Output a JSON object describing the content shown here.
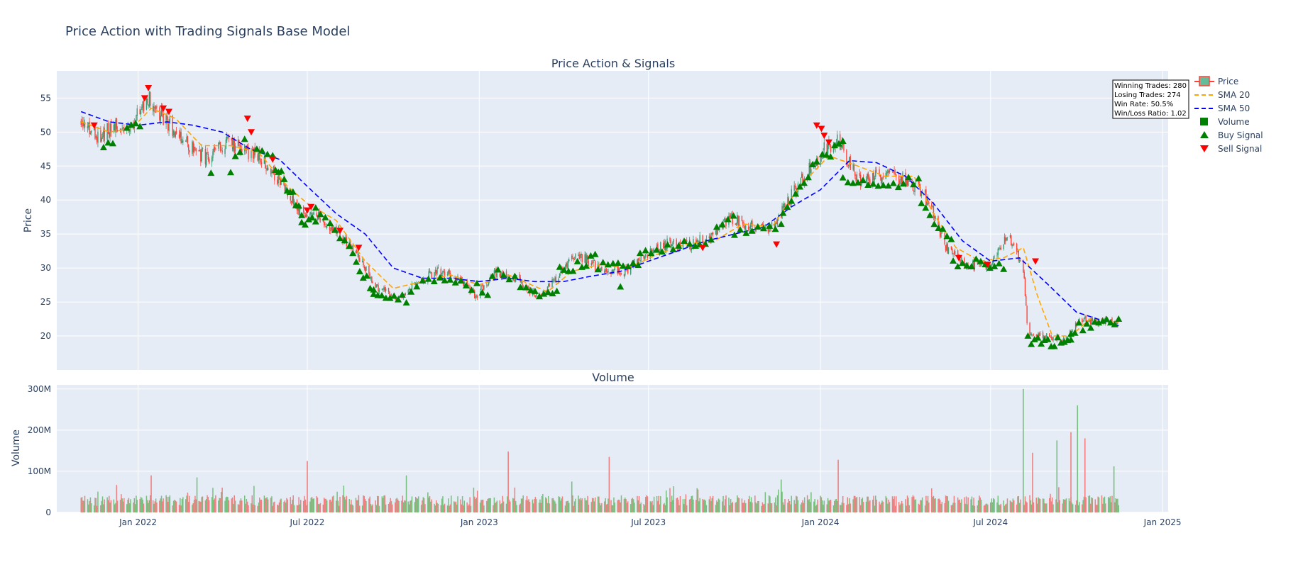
{
  "title": "Price Action with Trading Signals Base Model",
  "chart_data": {
    "type": "candlestick",
    "subplots": [
      {
        "title": "Price Action & Signals",
        "ylabel": "Price",
        "ylim": [
          15,
          59
        ],
        "yticks": [
          20,
          25,
          30,
          35,
          40,
          45,
          50,
          55
        ]
      },
      {
        "title": "Volume",
        "ylabel": "Volume",
        "ylim": [
          0,
          310000000
        ],
        "yticks": [
          0,
          100000000,
          200000000,
          300000000
        ],
        "ytick_labels": [
          "0",
          "100M",
          "200M",
          "300M"
        ]
      }
    ],
    "x_range": [
      "2021-10-06",
      "2025-01-07"
    ],
    "x_ticks": [
      {
        "date": "2022-01-01",
        "label": "Jan 2022"
      },
      {
        "date": "2022-07-01",
        "label": "Jul 2022"
      },
      {
        "date": "2023-01-01",
        "label": "Jan 2023"
      },
      {
        "date": "2023-07-01",
        "label": "Jul 2023"
      },
      {
        "date": "2024-01-01",
        "label": "Jan 2024"
      },
      {
        "date": "2024-07-01",
        "label": "Jul 2024"
      },
      {
        "date": "2025-01-01",
        "label": "Jan 2025"
      }
    ],
    "price_path": [
      [
        "2021-11-01",
        51.5
      ],
      [
        "2021-11-20",
        49.5
      ],
      [
        "2021-12-05",
        50.5
      ],
      [
        "2021-12-25",
        51.0
      ],
      [
        "2022-01-12",
        55.0
      ],
      [
        "2022-02-01",
        51.5
      ],
      [
        "2022-02-20",
        48.5
      ],
      [
        "2022-03-15",
        46.0
      ],
      [
        "2022-04-05",
        48.5
      ],
      [
        "2022-04-25",
        47.5
      ],
      [
        "2022-05-15",
        45.5
      ],
      [
        "2022-06-01",
        43.0
      ],
      [
        "2022-06-20",
        38.5
      ],
      [
        "2022-07-10",
        38.0
      ],
      [
        "2022-08-01",
        35.5
      ],
      [
        "2022-08-25",
        31.5
      ],
      [
        "2022-09-15",
        27.0
      ],
      [
        "2022-10-05",
        25.5
      ],
      [
        "2022-10-25",
        27.5
      ],
      [
        "2022-11-15",
        29.5
      ],
      [
        "2022-12-10",
        28.5
      ],
      [
        "2022-12-28",
        26.0
      ],
      [
        "2023-01-20",
        29.5
      ],
      [
        "2023-02-10",
        28.5
      ],
      [
        "2023-03-05",
        25.5
      ],
      [
        "2023-03-25",
        28.5
      ],
      [
        "2023-04-15",
        32.0
      ],
      [
        "2023-05-10",
        30.0
      ],
      [
        "2023-06-05",
        29.5
      ],
      [
        "2023-06-25",
        31.5
      ],
      [
        "2023-07-20",
        33.5
      ],
      [
        "2023-08-15",
        33.5
      ],
      [
        "2023-09-05",
        34.5
      ],
      [
        "2023-09-25",
        37.5
      ],
      [
        "2023-10-20",
        36.0
      ],
      [
        "2023-11-10",
        36.0
      ],
      [
        "2023-11-30",
        40.5
      ],
      [
        "2023-12-20",
        44.5
      ],
      [
        "2024-01-05",
        47.5
      ],
      [
        "2024-01-20",
        48.5
      ],
      [
        "2024-02-10",
        43.0
      ],
      [
        "2024-03-10",
        43.5
      ],
      [
        "2024-04-05",
        43.0
      ],
      [
        "2024-04-25",
        40.0
      ],
      [
        "2024-05-15",
        33.0
      ],
      [
        "2024-06-05",
        30.5
      ],
      [
        "2024-07-01",
        30.5
      ],
      [
        "2024-07-20",
        35.0
      ],
      [
        "2024-08-05",
        30.0
      ],
      [
        "2024-08-10",
        20.0
      ],
      [
        "2024-08-30",
        20.0
      ],
      [
        "2024-09-20",
        19.5
      ],
      [
        "2024-10-05",
        22.5
      ],
      [
        "2024-10-25",
        22.0
      ],
      [
        "2024-11-15",
        22.0
      ]
    ],
    "sma20": [
      [
        "2021-11-01",
        51.5
      ],
      [
        "2021-12-01",
        50.0
      ],
      [
        "2021-12-25",
        50.5
      ],
      [
        "2022-01-15",
        53.5
      ],
      [
        "2022-02-10",
        52.0
      ],
      [
        "2022-03-10",
        48.0
      ],
      [
        "2022-04-10",
        48.0
      ],
      [
        "2022-05-10",
        47.0
      ],
      [
        "2022-06-10",
        42.0
      ],
      [
        "2022-07-01",
        39.5
      ],
      [
        "2022-08-01",
        37.0
      ],
      [
        "2022-09-01",
        31.0
      ],
      [
        "2022-10-01",
        27.0
      ],
      [
        "2022-11-01",
        28.0
      ],
      [
        "2022-12-01",
        29.0
      ],
      [
        "2023-01-01",
        27.5
      ],
      [
        "2023-02-01",
        29.0
      ],
      [
        "2023-03-15",
        26.5
      ],
      [
        "2023-04-10",
        29.5
      ],
      [
        "2023-05-10",
        30.5
      ],
      [
        "2023-06-10",
        30.0
      ],
      [
        "2023-07-10",
        32.0
      ],
      [
        "2023-08-10",
        33.5
      ],
      [
        "2023-09-10",
        34.0
      ],
      [
        "2023-10-10",
        36.5
      ],
      [
        "2023-11-10",
        36.0
      ],
      [
        "2023-12-10",
        42.0
      ],
      [
        "2024-01-10",
        46.5
      ],
      [
        "2024-02-10",
        45.0
      ],
      [
        "2024-03-10",
        43.5
      ],
      [
        "2024-04-10",
        43.5
      ],
      [
        "2024-05-01",
        38.0
      ],
      [
        "2024-05-25",
        33.0
      ],
      [
        "2024-06-20",
        31.0
      ],
      [
        "2024-07-15",
        31.5
      ],
      [
        "2024-08-05",
        33.0
      ],
      [
        "2024-08-20",
        26.0
      ],
      [
        "2024-09-05",
        20.0
      ],
      [
        "2024-09-25",
        20.0
      ],
      [
        "2024-10-15",
        22.5
      ],
      [
        "2024-11-15",
        22.0
      ]
    ],
    "sma50": [
      [
        "2021-11-01",
        53.0
      ],
      [
        "2021-12-01",
        51.5
      ],
      [
        "2022-01-01",
        51.0
      ],
      [
        "2022-02-01",
        51.5
      ],
      [
        "2022-03-01",
        51.0
      ],
      [
        "2022-04-01",
        50.0
      ],
      [
        "2022-05-01",
        47.5
      ],
      [
        "2022-06-01",
        46.0
      ],
      [
        "2022-07-01",
        42.0
      ],
      [
        "2022-08-01",
        38.0
      ],
      [
        "2022-09-01",
        35.0
      ],
      [
        "2022-10-01",
        30.0
      ],
      [
        "2022-11-01",
        28.5
      ],
      [
        "2022-12-01",
        28.5
      ],
      [
        "2023-01-01",
        28.0
      ],
      [
        "2023-02-01",
        28.5
      ],
      [
        "2023-03-01",
        28.0
      ],
      [
        "2023-04-01",
        28.0
      ],
      [
        "2023-05-01",
        28.8
      ],
      [
        "2023-06-01",
        29.5
      ],
      [
        "2023-07-01",
        31.0
      ],
      [
        "2023-08-01",
        32.5
      ],
      [
        "2023-09-01",
        34.0
      ],
      [
        "2023-10-01",
        35.0
      ],
      [
        "2023-11-01",
        36.0
      ],
      [
        "2023-12-01",
        39.0
      ],
      [
        "2024-01-01",
        41.5
      ],
      [
        "2024-02-01",
        45.8
      ],
      [
        "2024-03-01",
        45.5
      ],
      [
        "2024-04-01",
        43.5
      ],
      [
        "2024-05-01",
        39.5
      ],
      [
        "2024-06-01",
        34.0
      ],
      [
        "2024-07-01",
        31.0
      ],
      [
        "2024-08-01",
        31.5
      ],
      [
        "2024-09-01",
        27.5
      ],
      [
        "2024-10-01",
        23.5
      ],
      [
        "2024-11-15",
        21.5
      ]
    ],
    "sell_signals": [
      [
        "2021-11-15",
        51.0
      ],
      [
        "2022-01-08",
        55.0
      ],
      [
        "2022-01-12",
        56.5
      ],
      [
        "2022-01-28",
        53.5
      ],
      [
        "2022-02-03",
        53.0
      ],
      [
        "2022-04-28",
        52.0
      ],
      [
        "2022-05-02",
        50.0
      ],
      [
        "2022-05-25",
        46.0
      ],
      [
        "2022-07-01",
        38.5
      ],
      [
        "2022-07-05",
        39.0
      ],
      [
        "2022-08-05",
        35.5
      ],
      [
        "2022-08-25",
        33.0
      ],
      [
        "2023-08-28",
        33.0
      ],
      [
        "2023-11-15",
        33.5
      ],
      [
        "2023-12-28",
        51.0
      ],
      [
        "2024-01-02",
        50.5
      ],
      [
        "2024-01-05",
        49.5
      ],
      [
        "2024-01-10",
        48.5
      ],
      [
        "2024-05-28",
        31.5
      ],
      [
        "2024-06-28",
        30.5
      ],
      [
        "2024-08-18",
        31.0
      ]
    ],
    "buy_clusters": [
      {
        "start": "2021-11-25",
        "end": "2021-12-05",
        "from": 48.0,
        "to": 48.0,
        "count": 3
      },
      {
        "start": "2021-12-20",
        "end": "2022-01-03",
        "from": 50.5,
        "to": 51.0,
        "count": 4
      },
      {
        "start": "2022-03-20",
        "end": "2022-03-20",
        "from": 43.5,
        "to": 43.5,
        "count": 1
      },
      {
        "start": "2022-04-10",
        "end": "2022-04-25",
        "from": 44.0,
        "to": 49.0,
        "count": 4
      },
      {
        "start": "2022-05-08",
        "end": "2022-05-25",
        "from": 47.5,
        "to": 46.0,
        "count": 4
      },
      {
        "start": "2022-05-28",
        "end": "2022-06-25",
        "from": 45.0,
        "to": 38.5,
        "count": 10
      },
      {
        "start": "2022-06-25",
        "end": "2022-07-10",
        "from": 37.0,
        "to": 36.5,
        "count": 5
      },
      {
        "start": "2022-07-10",
        "end": "2022-08-10",
        "from": 38.5,
        "to": 34.5,
        "count": 7
      },
      {
        "start": "2022-08-15",
        "end": "2022-09-10",
        "from": 33.0,
        "to": 26.5,
        "count": 8
      },
      {
        "start": "2022-09-10",
        "end": "2022-10-15",
        "from": 26.5,
        "to": 25.5,
        "count": 9
      },
      {
        "start": "2022-10-20",
        "end": "2022-11-20",
        "from": 27.0,
        "to": 29.0,
        "count": 6
      },
      {
        "start": "2022-11-25",
        "end": "2023-01-10",
        "from": 28.5,
        "to": 26.5,
        "count": 9
      },
      {
        "start": "2023-01-15",
        "end": "2023-02-20",
        "from": 29.5,
        "to": 27.5,
        "count": 7
      },
      {
        "start": "2023-02-25",
        "end": "2023-03-25",
        "from": 26.0,
        "to": 26.5,
        "count": 7
      },
      {
        "start": "2023-03-28",
        "end": "2023-05-05",
        "from": 29.5,
        "to": 31.5,
        "count": 9
      },
      {
        "start": "2023-05-08",
        "end": "2023-06-20",
        "from": 30.5,
        "to": 30.5,
        "count": 9
      },
      {
        "start": "2023-06-01",
        "end": "2023-06-01",
        "from": 27.0,
        "to": 27.0,
        "count": 1
      },
      {
        "start": "2023-06-22",
        "end": "2023-08-20",
        "from": 32.0,
        "to": 34.0,
        "count": 11
      },
      {
        "start": "2023-08-25",
        "end": "2023-09-30",
        "from": 33.0,
        "to": 37.5,
        "count": 7
      },
      {
        "start": "2023-10-01",
        "end": "2023-11-20",
        "from": 35.0,
        "to": 36.0,
        "count": 9
      },
      {
        "start": "2023-11-22",
        "end": "2023-12-28",
        "from": 38.0,
        "to": 45.5,
        "count": 9
      },
      {
        "start": "2024-01-03",
        "end": "2024-01-25",
        "from": 46.0,
        "to": 48.5,
        "count": 6
      },
      {
        "start": "2024-01-25",
        "end": "2024-04-15",
        "from": 43.0,
        "to": 42.5,
        "count": 16
      },
      {
        "start": "2024-04-18",
        "end": "2024-05-20",
        "from": 39.5,
        "to": 34.0,
        "count": 8
      },
      {
        "start": "2024-05-22",
        "end": "2024-07-15",
        "from": 31.0,
        "to": 30.5,
        "count": 12
      },
      {
        "start": "2024-08-10",
        "end": "2024-09-25",
        "from": 19.5,
        "to": 19.0,
        "count": 14
      },
      {
        "start": "2024-09-25",
        "end": "2024-11-15",
        "from": 21.0,
        "to": 22.0,
        "count": 13
      }
    ],
    "volume_spikes": [
      {
        "date": "2022-01-15",
        "value": 90000000
      },
      {
        "date": "2022-03-05",
        "value": 85000000
      },
      {
        "date": "2022-07-01",
        "value": 125000000
      },
      {
        "date": "2022-10-15",
        "value": 90000000
      },
      {
        "date": "2023-02-01",
        "value": 148000000
      },
      {
        "date": "2023-04-10",
        "value": 75000000
      },
      {
        "date": "2023-05-20",
        "value": 135000000
      },
      {
        "date": "2023-11-20",
        "value": 80000000
      },
      {
        "date": "2024-01-20",
        "value": 128000000
      },
      {
        "date": "2024-08-05",
        "value": 300000000
      },
      {
        "date": "2024-08-15",
        "value": 145000000
      },
      {
        "date": "2024-09-10",
        "value": 175000000
      },
      {
        "date": "2024-09-25",
        "value": 195000000
      },
      {
        "date": "2024-10-02",
        "value": 260000000
      },
      {
        "date": "2024-10-10",
        "value": 180000000
      },
      {
        "date": "2024-11-10",
        "value": 112000000
      }
    ],
    "volume_baseline": 35000000,
    "legend": {
      "placement": "top-right",
      "entries": [
        {
          "name": "Price",
          "symbol": "candle"
        },
        {
          "name": "SMA 20",
          "symbol": "dash-orange"
        },
        {
          "name": "SMA 50",
          "symbol": "dash-blue"
        },
        {
          "name": "Volume",
          "symbol": "square-green"
        },
        {
          "name": "Buy Signal",
          "symbol": "triangle-up-green"
        },
        {
          "name": "Sell Signal",
          "symbol": "triangle-down-red"
        }
      ]
    },
    "stats_box": {
      "lines": [
        "Winning Trades: 280",
        "Losing Trades: 274",
        "Win Rate: 50.5%",
        "Win/Loss Ratio: 1.02"
      ]
    },
    "colors": {
      "up": "#2ca02c",
      "down": "#ff4136",
      "candle_up": "#3d9970",
      "sma20": "#ffa500",
      "sma50": "#0000ff",
      "buy": "#008000",
      "sell": "#ff0000",
      "volume_up": "#77c07f",
      "volume_down": "#f08080",
      "plot_bg": "#e5ecf6",
      "grid": "#ffffff"
    }
  }
}
